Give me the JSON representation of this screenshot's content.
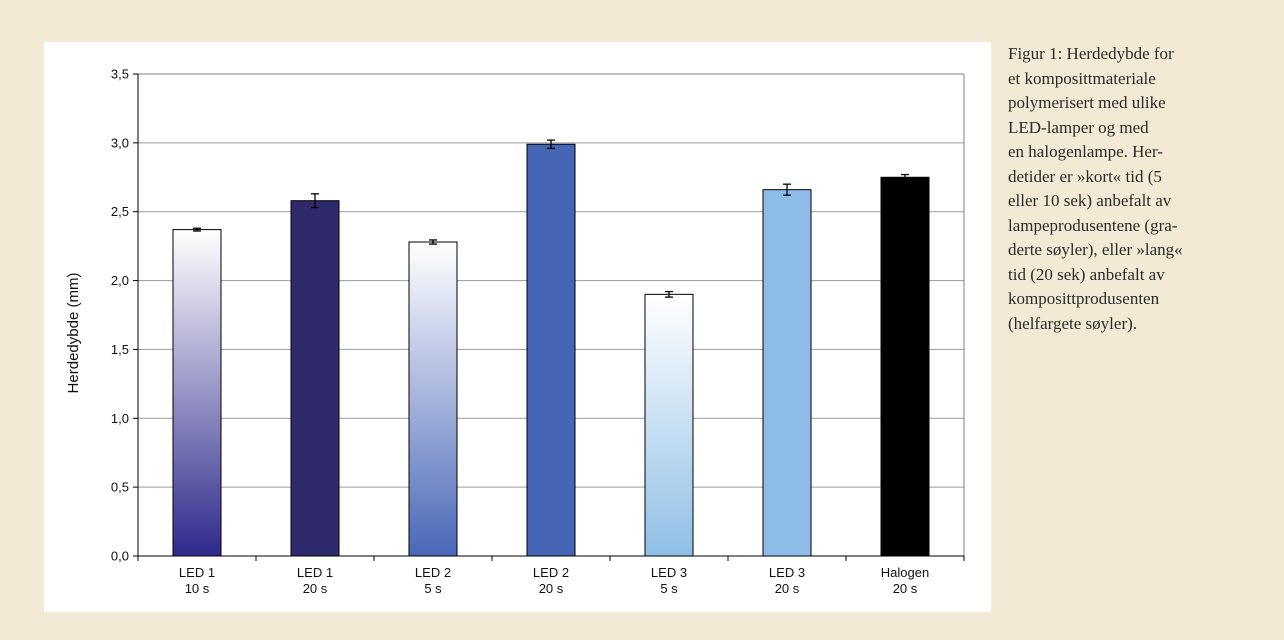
{
  "chart_data": {
    "type": "bar",
    "ylabel": "Herdedybde (mm)",
    "xlabel": "",
    "ylim": [
      0,
      3.5
    ],
    "yticks": [
      0.0,
      0.5,
      1.0,
      1.5,
      2.0,
      2.5,
      3.0,
      3.5
    ],
    "ytick_labels": [
      "0,0",
      "0,5",
      "1,0",
      "1,5",
      "2,0",
      "2,5",
      "3,0",
      "3,5"
    ],
    "grid": true,
    "categories": [
      {
        "line1": "LED 1",
        "line2": "10 s"
      },
      {
        "line1": "LED 1",
        "line2": "20 s"
      },
      {
        "line1": "LED 2",
        "line2": "5 s"
      },
      {
        "line1": "LED 2",
        "line2": "20 s"
      },
      {
        "line1": "LED 3",
        "line2": "5 s"
      },
      {
        "line1": "LED 3",
        "line2": "20 s"
      },
      {
        "line1": "Halogen",
        "line2": "20 s"
      }
    ],
    "values": [
      2.37,
      2.58,
      2.28,
      2.99,
      1.9,
      2.66,
      2.75
    ],
    "errors": [
      0.01,
      0.05,
      0.015,
      0.03,
      0.02,
      0.04,
      0.02
    ],
    "fills": [
      {
        "kind": "gradient",
        "top": "#ffffff",
        "bottom": "#2f2a8c"
      },
      {
        "kind": "solid",
        "color": "#2f2a6b"
      },
      {
        "kind": "gradient",
        "top": "#ffffff",
        "bottom": "#4a68b8"
      },
      {
        "kind": "solid",
        "color": "#4466b4"
      },
      {
        "kind": "gradient",
        "top": "#ffffff",
        "bottom": "#8fbfe6"
      },
      {
        "kind": "solid",
        "color": "#8dbde7"
      },
      {
        "kind": "solid",
        "color": "#000000"
      }
    ]
  },
  "caption": {
    "lines": [
      "Figur 1: Herdedybde for",
      "et komposittmateriale",
      "polymerisert med ulike",
      "LED-lamper og med",
      "en halogenlampe. Her-",
      "detider er »kort« tid (5",
      "eller 10 sek) anbefalt av",
      "lampeprodusentene (gra-",
      "derte søyler), eller »lang«",
      "tid (20 sek) anbefalt av",
      "komposittprodusenten",
      "(helfargete søyler)."
    ]
  },
  "colors": {
    "page_background": "#f3ead6",
    "plot_border": "#808080",
    "grid": "#9a9a9a"
  }
}
